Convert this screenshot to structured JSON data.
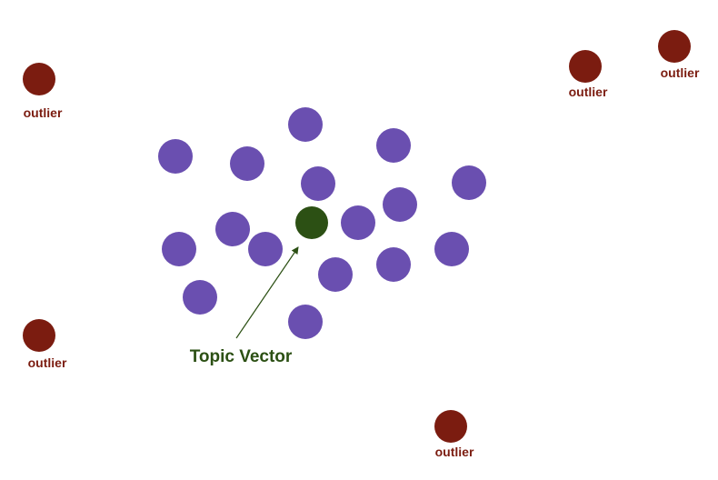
{
  "colors": {
    "cluster": "#6a4fb0",
    "topic": "#2c5014",
    "outlier": "#7b1c10",
    "arrow": "#2c5014"
  },
  "labels": {
    "outlier": "outlier",
    "topic_vector": "Topic Vector"
  }
}
